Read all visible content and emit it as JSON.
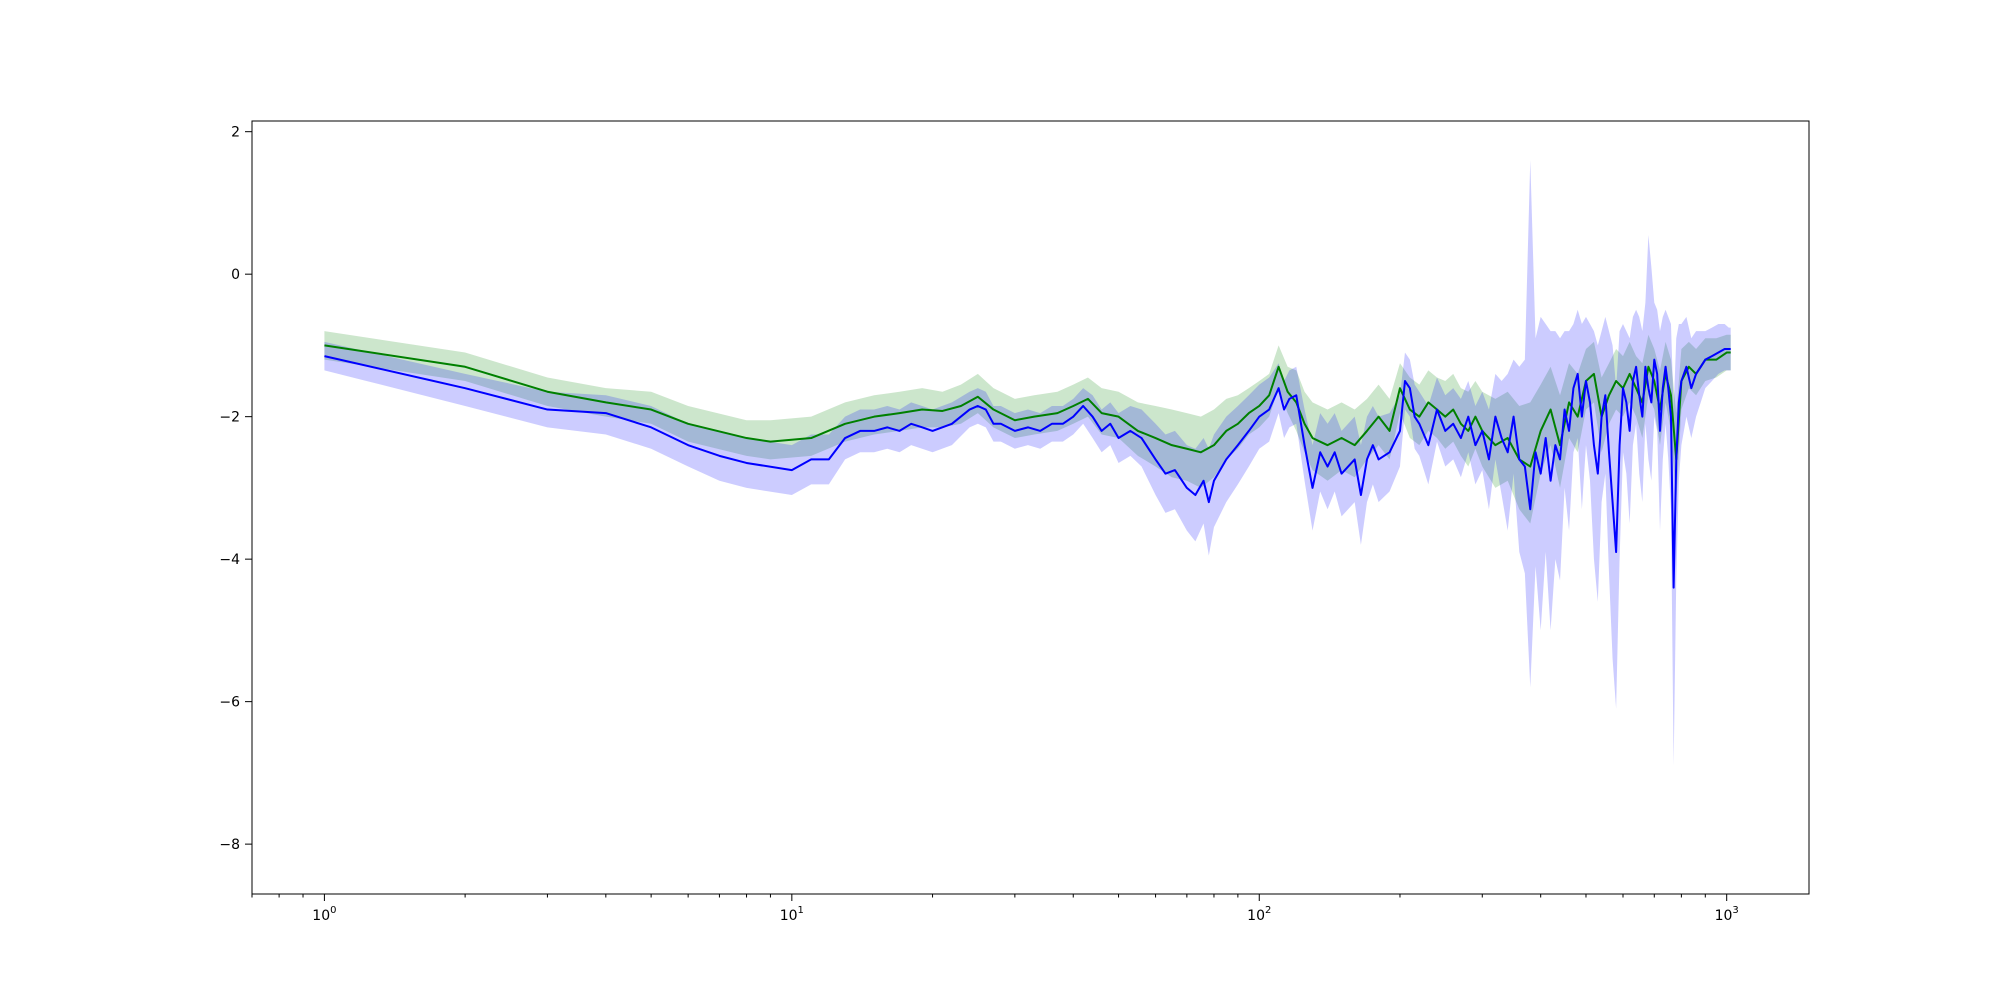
{
  "chart_data": {
    "type": "line",
    "title": "",
    "xlabel": "",
    "ylabel": "",
    "xscale": "log",
    "xlim": [
      0.7,
      1500
    ],
    "ylim": [
      -8.7,
      2.15
    ],
    "grid": false,
    "legend": "none",
    "x_tick_labels": [
      {
        "value": 1,
        "base": "10",
        "exp": "0"
      },
      {
        "value": 10,
        "base": "10",
        "exp": "1"
      },
      {
        "value": 100,
        "base": "10",
        "exp": "2"
      },
      {
        "value": 1000,
        "base": "10",
        "exp": "3"
      }
    ],
    "y_tick_labels": [
      {
        "value": 2,
        "label": "2"
      },
      {
        "value": 0,
        "label": "0"
      },
      {
        "value": -2,
        "label": "−2"
      },
      {
        "value": -4,
        "label": "−4"
      },
      {
        "value": -6,
        "label": "−6"
      },
      {
        "value": -8,
        "label": "−8"
      }
    ],
    "series": [
      {
        "color": "#008000",
        "band_color": "#008000",
        "x": [
          1,
          2,
          3,
          4,
          5,
          6,
          8,
          9,
          11,
          13,
          15,
          17,
          19,
          21,
          23,
          25,
          27,
          30,
          33,
          37,
          40,
          43,
          46,
          50,
          55,
          60,
          65,
          70,
          75,
          80,
          85,
          90,
          95,
          100,
          105,
          110,
          115,
          120,
          125,
          130,
          140,
          150,
          160,
          170,
          180,
          190,
          200,
          210,
          220,
          230,
          240,
          250,
          260,
          270,
          280,
          290,
          300,
          320,
          340,
          360,
          380,
          400,
          420,
          440,
          460,
          480,
          500,
          520,
          540,
          560,
          580,
          600,
          620,
          640,
          660,
          680,
          700,
          720,
          740,
          760,
          780,
          800,
          830,
          860,
          900,
          950,
          1000,
          1020
        ],
        "values": [
          -1.0,
          -1.3,
          -1.65,
          -1.8,
          -1.9,
          -2.1,
          -2.3,
          -2.35,
          -2.3,
          -2.1,
          -2.0,
          -1.95,
          -1.9,
          -1.92,
          -1.85,
          -1.72,
          -1.9,
          -2.05,
          -2.0,
          -1.95,
          -1.85,
          -1.75,
          -1.95,
          -2.0,
          -2.2,
          -2.3,
          -2.4,
          -2.45,
          -2.5,
          -2.4,
          -2.2,
          -2.1,
          -1.95,
          -1.85,
          -1.7,
          -1.3,
          -1.65,
          -1.8,
          -2.1,
          -2.3,
          -2.4,
          -2.3,
          -2.4,
          -2.2,
          -2.0,
          -2.2,
          -1.6,
          -1.9,
          -2.0,
          -1.8,
          -1.9,
          -2.0,
          -1.9,
          -2.1,
          -2.2,
          -2.0,
          -2.2,
          -2.4,
          -2.3,
          -2.6,
          -2.7,
          -2.2,
          -1.9,
          -2.4,
          -1.8,
          -2.0,
          -1.5,
          -1.4,
          -2.0,
          -1.7,
          -1.5,
          -1.6,
          -1.4,
          -1.6,
          -1.8,
          -1.3,
          -1.5,
          -1.9,
          -1.4,
          -1.7,
          -2.6,
          -1.5,
          -1.3,
          -1.4,
          -1.2,
          -1.2,
          -1.1,
          -1.1
        ],
        "lower": [
          -1.2,
          -1.5,
          -1.85,
          -2.0,
          -2.1,
          -2.35,
          -2.55,
          -2.6,
          -2.55,
          -2.35,
          -2.25,
          -2.2,
          -2.15,
          -2.15,
          -2.1,
          -1.95,
          -2.15,
          -2.3,
          -2.25,
          -2.2,
          -2.1,
          -2.0,
          -2.25,
          -2.3,
          -2.55,
          -2.7,
          -2.85,
          -2.9,
          -3.0,
          -2.85,
          -2.6,
          -2.45,
          -2.25,
          -2.15,
          -2.0,
          -1.6,
          -1.95,
          -2.2,
          -2.5,
          -2.75,
          -2.9,
          -2.75,
          -2.85,
          -2.6,
          -2.4,
          -2.6,
          -1.95,
          -2.3,
          -2.4,
          -2.2,
          -2.3,
          -2.45,
          -2.35,
          -2.55,
          -2.7,
          -2.45,
          -2.7,
          -3.0,
          -2.9,
          -3.3,
          -3.5,
          -2.8,
          -2.4,
          -3.0,
          -2.3,
          -2.5,
          -1.9,
          -1.8,
          -2.5,
          -2.1,
          -1.9,
          -2.0,
          -1.8,
          -2.0,
          -2.3,
          -1.7,
          -1.9,
          -2.4,
          -1.8,
          -2.2,
          -3.2,
          -1.9,
          -1.6,
          -1.7,
          -1.5,
          -1.45,
          -1.35,
          -1.35
        ],
        "upper": [
          -0.8,
          -1.1,
          -1.45,
          -1.6,
          -1.65,
          -1.85,
          -2.05,
          -2.05,
          -2.0,
          -1.8,
          -1.7,
          -1.65,
          -1.6,
          -1.65,
          -1.55,
          -1.4,
          -1.6,
          -1.75,
          -1.7,
          -1.65,
          -1.55,
          -1.45,
          -1.6,
          -1.65,
          -1.8,
          -1.85,
          -1.9,
          -1.95,
          -2.0,
          -1.9,
          -1.75,
          -1.7,
          -1.6,
          -1.5,
          -1.4,
          -1.0,
          -1.3,
          -1.35,
          -1.65,
          -1.8,
          -1.9,
          -1.8,
          -1.9,
          -1.75,
          -1.55,
          -1.75,
          -1.25,
          -1.45,
          -1.55,
          -1.35,
          -1.45,
          -1.5,
          -1.4,
          -1.6,
          -1.65,
          -1.5,
          -1.65,
          -1.75,
          -1.65,
          -1.85,
          -1.8,
          -1.55,
          -1.3,
          -1.7,
          -1.25,
          -1.4,
          -1.05,
          -0.95,
          -1.45,
          -1.25,
          -1.05,
          -1.15,
          -0.95,
          -1.15,
          -1.25,
          -0.85,
          -1.05,
          -1.35,
          -0.95,
          -1.2,
          -1.95,
          -1.05,
          -0.95,
          -1.05,
          -0.9,
          -0.9,
          -0.85,
          -0.85
        ]
      },
      {
        "color": "#0000ff",
        "band_color": "#0000ff",
        "x": [
          1,
          2,
          3,
          4,
          5,
          6,
          7,
          8,
          10,
          11,
          12,
          13,
          14,
          15,
          16,
          17,
          18,
          19,
          20,
          22,
          24,
          25,
          26,
          27,
          28,
          30,
          32,
          34,
          36,
          38,
          40,
          42,
          44,
          46,
          48,
          50,
          53,
          56,
          60,
          63,
          66,
          70,
          73,
          76,
          78,
          80,
          85,
          90,
          95,
          100,
          105,
          110,
          113,
          116,
          120,
          125,
          130,
          135,
          140,
          145,
          150,
          160,
          165,
          170,
          175,
          180,
          190,
          200,
          205,
          210,
          215,
          220,
          230,
          240,
          250,
          260,
          270,
          280,
          290,
          300,
          310,
          320,
          330,
          340,
          350,
          360,
          370,
          380,
          390,
          400,
          410,
          420,
          430,
          440,
          450,
          460,
          470,
          480,
          490,
          500,
          510,
          520,
          530,
          540,
          550,
          560,
          570,
          580,
          590,
          600,
          610,
          620,
          630,
          640,
          650,
          660,
          670,
          680,
          690,
          700,
          710,
          720,
          730,
          740,
          750,
          760,
          770,
          780,
          790,
          800,
          820,
          840,
          860,
          880,
          900,
          930,
          960,
          990,
          1010,
          1020
        ],
        "values": [
          -1.15,
          -1.6,
          -1.9,
          -1.95,
          -2.15,
          -2.4,
          -2.55,
          -2.65,
          -2.75,
          -2.6,
          -2.6,
          -2.3,
          -2.2,
          -2.2,
          -2.15,
          -2.2,
          -2.1,
          -2.15,
          -2.2,
          -2.1,
          -1.9,
          -1.85,
          -1.9,
          -2.1,
          -2.1,
          -2.2,
          -2.15,
          -2.2,
          -2.1,
          -2.1,
          -2.0,
          -1.85,
          -2.0,
          -2.2,
          -2.1,
          -2.3,
          -2.2,
          -2.3,
          -2.6,
          -2.8,
          -2.75,
          -3.0,
          -3.1,
          -2.9,
          -3.2,
          -2.9,
          -2.6,
          -2.4,
          -2.2,
          -2.0,
          -1.9,
          -1.6,
          -1.9,
          -1.75,
          -1.7,
          -2.4,
          -3.0,
          -2.5,
          -2.7,
          -2.5,
          -2.8,
          -2.6,
          -3.1,
          -2.6,
          -2.4,
          -2.6,
          -2.5,
          -2.2,
          -1.5,
          -1.6,
          -2.0,
          -2.1,
          -2.4,
          -1.9,
          -2.2,
          -2.1,
          -2.3,
          -2.0,
          -2.4,
          -2.2,
          -2.6,
          -2.0,
          -2.3,
          -2.5,
          -2.0,
          -2.6,
          -2.7,
          -3.3,
          -2.5,
          -2.8,
          -2.3,
          -2.9,
          -2.4,
          -2.6,
          -1.9,
          -2.2,
          -1.6,
          -1.4,
          -2.0,
          -1.5,
          -1.8,
          -2.4,
          -2.8,
          -2.0,
          -1.7,
          -2.5,
          -3.2,
          -3.9,
          -2.4,
          -1.6,
          -1.8,
          -2.2,
          -1.5,
          -1.3,
          -1.7,
          -2.0,
          -1.3,
          -1.6,
          -1.8,
          -1.2,
          -1.4,
          -2.2,
          -1.6,
          -1.3,
          -1.6,
          -2.0,
          -4.4,
          -2.6,
          -1.8,
          -1.5,
          -1.3,
          -1.6,
          -1.4,
          -1.3,
          -1.2,
          -1.15,
          -1.1,
          -1.05,
          -1.05,
          -1.05
        ],
        "lower": [
          -1.35,
          -1.85,
          -2.15,
          -2.25,
          -2.45,
          -2.7,
          -2.9,
          -3.0,
          -3.1,
          -2.95,
          -2.95,
          -2.6,
          -2.5,
          -2.5,
          -2.45,
          -2.5,
          -2.4,
          -2.45,
          -2.5,
          -2.4,
          -2.15,
          -2.1,
          -2.15,
          -2.35,
          -2.35,
          -2.45,
          -2.4,
          -2.45,
          -2.35,
          -2.35,
          -2.25,
          -2.1,
          -2.3,
          -2.5,
          -2.4,
          -2.65,
          -2.55,
          -2.7,
          -3.1,
          -3.35,
          -3.3,
          -3.6,
          -3.75,
          -3.5,
          -3.95,
          -3.55,
          -3.2,
          -2.95,
          -2.7,
          -2.45,
          -2.35,
          -1.95,
          -2.3,
          -2.15,
          -2.1,
          -2.9,
          -3.6,
          -3.05,
          -3.3,
          -3.05,
          -3.4,
          -3.2,
          -3.8,
          -3.2,
          -2.95,
          -3.2,
          -3.05,
          -2.7,
          -1.9,
          -2.0,
          -2.45,
          -2.55,
          -2.95,
          -2.35,
          -2.7,
          -2.6,
          -2.85,
          -2.5,
          -2.95,
          -2.75,
          -3.3,
          -2.6,
          -3.1,
          -3.6,
          -2.8,
          -3.9,
          -4.2,
          -5.8,
          -4.1,
          -5.0,
          -3.9,
          -5.0,
          -4.0,
          -4.3,
          -3.0,
          -3.6,
          -2.5,
          -2.3,
          -3.3,
          -2.4,
          -2.9,
          -4.0,
          -4.6,
          -3.2,
          -2.8,
          -4.2,
          -5.4,
          -6.1,
          -4.0,
          -2.5,
          -2.8,
          -3.5,
          -2.4,
          -2.1,
          -2.8,
          -3.2,
          -2.1,
          -2.6,
          -2.9,
          -2.0,
          -2.2,
          -3.6,
          -2.6,
          -2.1,
          -2.6,
          -3.3,
          -6.9,
          -4.3,
          -2.9,
          -2.4,
          -2.0,
          -2.3,
          -2.0,
          -1.8,
          -1.6,
          -1.5,
          -1.4,
          -1.35,
          -1.35,
          -1.35
        ],
        "upper": [
          -0.95,
          -1.4,
          -1.65,
          -1.7,
          -1.85,
          -2.1,
          -2.2,
          -2.3,
          -2.4,
          -2.25,
          -2.25,
          -2.0,
          -1.9,
          -1.9,
          -1.85,
          -1.9,
          -1.8,
          -1.85,
          -1.9,
          -1.8,
          -1.65,
          -1.6,
          -1.65,
          -1.85,
          -1.85,
          -1.95,
          -1.9,
          -1.95,
          -1.85,
          -1.85,
          -1.75,
          -1.6,
          -1.7,
          -1.9,
          -1.8,
          -1.95,
          -1.85,
          -1.9,
          -2.1,
          -2.25,
          -2.2,
          -2.4,
          -2.45,
          -2.3,
          -2.45,
          -2.25,
          -2.0,
          -1.85,
          -1.7,
          -1.55,
          -1.45,
          -1.25,
          -1.5,
          -1.35,
          -1.3,
          -1.9,
          -2.4,
          -1.95,
          -2.1,
          -1.95,
          -2.2,
          -2.0,
          -2.4,
          -2.0,
          -1.85,
          -2.0,
          -1.95,
          -1.7,
          -1.1,
          -1.2,
          -1.55,
          -1.65,
          -1.85,
          -1.45,
          -1.7,
          -1.6,
          -1.75,
          -1.5,
          -1.85,
          -1.65,
          -1.9,
          -1.4,
          -1.5,
          -1.4,
          -1.2,
          -1.3,
          -1.2,
          1.6,
          -0.9,
          -0.6,
          -0.7,
          -0.8,
          -0.8,
          -0.9,
          -0.8,
          -0.8,
          -0.7,
          -0.5,
          -0.7,
          -0.6,
          -0.7,
          -0.8,
          -1.0,
          -0.8,
          -0.6,
          -0.8,
          -1.0,
          -1.6,
          -0.8,
          -0.7,
          -0.8,
          -0.9,
          -0.6,
          -0.5,
          -0.6,
          -0.8,
          -0.4,
          0.55,
          0.1,
          -0.4,
          -0.5,
          -0.8,
          -0.6,
          -0.5,
          -0.6,
          -0.7,
          -1.9,
          -0.9,
          -0.7,
          -0.7,
          -0.6,
          -0.9,
          -0.8,
          -0.8,
          -0.8,
          -0.75,
          -0.7,
          -0.7,
          -0.75,
          -0.75
        ]
      }
    ]
  }
}
